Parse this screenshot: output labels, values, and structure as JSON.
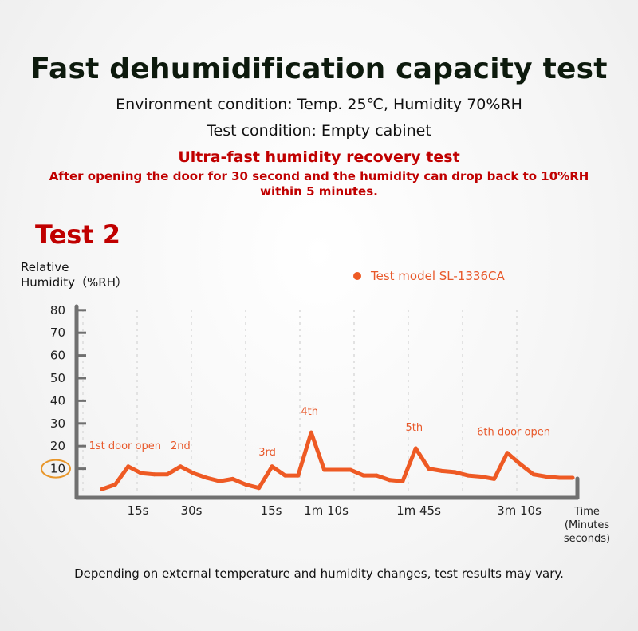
{
  "header": {
    "title": "Fast dehumidification capacity test",
    "environment": "Environment condition: Temp. 25℃, Humidity 70%RH",
    "test_condition": "Test condition: Empty cabinet",
    "subtitle": "Ultra-fast humidity recovery test",
    "description_line1": "After opening the door for 30 second and the humidity can drop back to 10%RH",
    "description_line2": "within 5 minutes."
  },
  "test_label": "Test 2",
  "footnote": "Depending on external temperature and humidity changes, test results may vary.",
  "colors": {
    "accent_red": "#c00000",
    "series_orange": "#ee5a24",
    "highlight_ring": "#e8962a",
    "axis": "#707070",
    "grid": "#e2e2e2"
  },
  "chart_data": {
    "type": "line",
    "ylabel_line1": "Relative",
    "ylabel_line2": "Humidity（%RH）",
    "xlabel_lines": [
      "Time",
      "(Minutes",
      "seconds)"
    ],
    "ylim": [
      0,
      80
    ],
    "y_ticks": [
      80,
      70,
      60,
      50,
      40,
      30,
      20,
      10
    ],
    "highlight_tick": "10",
    "x_tick_labels": [
      "15s",
      "30s",
      "15s",
      "1m 10s",
      "1m 45s",
      "3m 10s"
    ],
    "grid": true,
    "legend_position": "top-right",
    "series": [
      {
        "name": "Test model SL-1336CA",
        "points": [
          [
            0,
            1
          ],
          [
            1,
            3
          ],
          [
            2,
            11
          ],
          [
            3,
            8
          ],
          [
            4,
            7.5
          ],
          [
            5,
            7.5
          ],
          [
            6,
            11
          ],
          [
            7,
            8
          ],
          [
            8,
            6
          ],
          [
            9,
            4.5
          ],
          [
            10,
            5.5
          ],
          [
            11,
            3
          ],
          [
            12,
            1.5
          ],
          [
            13,
            11
          ],
          [
            14,
            7
          ],
          [
            15,
            7
          ],
          [
            16,
            26
          ],
          [
            17,
            9.5
          ],
          [
            18,
            9.5
          ],
          [
            19,
            9.5
          ],
          [
            20,
            7
          ],
          [
            21,
            7
          ],
          [
            22,
            5
          ],
          [
            23,
            4.5
          ],
          [
            24,
            19
          ],
          [
            25,
            10
          ],
          [
            26,
            9
          ],
          [
            27,
            8.5
          ],
          [
            28,
            7
          ],
          [
            29,
            6.5
          ],
          [
            30,
            5.5
          ],
          [
            31,
            17
          ],
          [
            32,
            12
          ],
          [
            33,
            7.5
          ],
          [
            34,
            6.5
          ],
          [
            35,
            6
          ],
          [
            36,
            6
          ]
        ]
      }
    ],
    "annotations": [
      {
        "text": "1st door open",
        "point_index": 2
      },
      {
        "text": "2nd",
        "point_index": 6
      },
      {
        "text": "3rd",
        "point_index": 13
      },
      {
        "text": "4th",
        "point_index": 16
      },
      {
        "text": "5th",
        "point_index": 24
      },
      {
        "text": "6th door open",
        "point_index": 31
      }
    ]
  }
}
